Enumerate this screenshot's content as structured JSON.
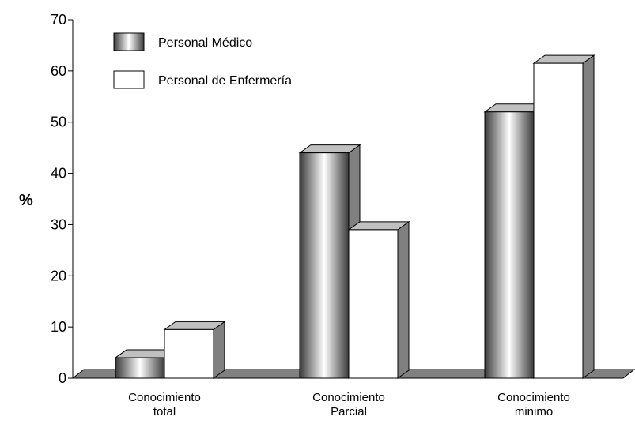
{
  "chart_data": {
    "type": "bar",
    "style": "3d-cylindrical-bars",
    "title": "",
    "xlabel": "",
    "ylabel": "%",
    "ylim": [
      0,
      70
    ],
    "yticks": [
      0,
      10,
      20,
      30,
      40,
      50,
      60,
      70
    ],
    "grid": false,
    "legend_position": "top-left",
    "categories": [
      [
        "Conocimiento",
        "total"
      ],
      [
        "Conocimiento",
        "Parcial"
      ],
      [
        "Conocimiento",
        "minimo"
      ]
    ],
    "series": [
      {
        "name": "Personal Médico",
        "values": [
          4,
          44,
          52
        ],
        "fill": "gradient-gray"
      },
      {
        "name": "Personal de Enfermería",
        "values": [
          9.5,
          29,
          61.5
        ],
        "fill": "#ffffff"
      }
    ],
    "colors": {
      "floor": "#808080",
      "side": "#808080",
      "top": "#c0c0c0",
      "gradient_dark": "#3a3a3a",
      "gradient_light": "#ffffff"
    }
  }
}
